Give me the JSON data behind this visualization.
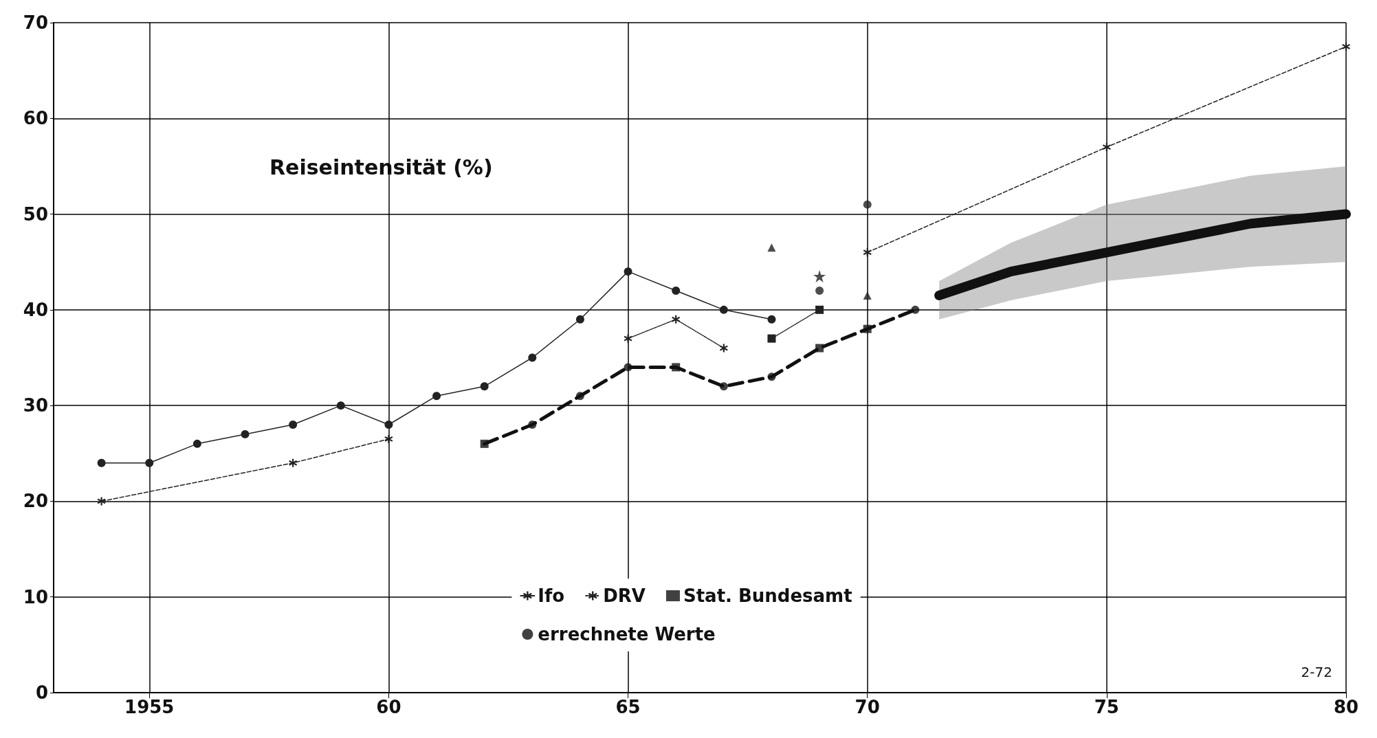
{
  "chart_data": {
    "type": "line",
    "ylabel": "Reiseintensität (%)",
    "annotations": [
      "2-72"
    ],
    "xlim": [
      1953,
      1980
    ],
    "xticks": [
      {
        "value": 1955,
        "label": "1955"
      },
      {
        "value": 1960,
        "label": "60"
      },
      {
        "value": 1965,
        "label": "65"
      },
      {
        "value": 1970,
        "label": "70"
      },
      {
        "value": 1975,
        "label": "75"
      },
      {
        "value": 1980,
        "label": "80"
      }
    ],
    "ylim": [
      0,
      70
    ],
    "yticks": [
      0,
      10,
      20,
      30,
      40,
      50,
      60,
      70
    ],
    "grid": true,
    "legend": "bottom",
    "series": [
      {
        "color": "#222222",
        "marker": "circle",
        "line_style": "solid",
        "x": [
          1954,
          1955,
          1956,
          1957,
          1958,
          1959,
          1960,
          1961,
          1962,
          1963,
          1964,
          1965,
          1966,
          1967,
          1968
        ],
        "values": [
          24,
          24,
          26,
          27,
          28,
          30,
          28,
          31,
          32,
          35,
          39,
          44,
          42,
          40,
          39
        ]
      },
      {
        "name": "Ifo",
        "type": "line",
        "color": "#222222",
        "marker": "cross",
        "line_style": "dashed",
        "x": [
          1954,
          1958,
          1960,
          1964,
          1970,
          1975,
          1980
        ],
        "values": [
          20,
          24,
          26.5,
          null,
          46,
          57,
          67.5
        ]
      },
      {
        "name": "DRV",
        "type": "line",
        "color": "#222222",
        "marker": "cross",
        "line_style": "dotted",
        "x": [
          1965,
          1966,
          1967
        ],
        "values": [
          37,
          39,
          36
        ]
      },
      {
        "type": "line",
        "color": "#222222",
        "marker": "square",
        "line_style": "dotted",
        "x": [
          1968,
          1969
        ],
        "values": [
          37,
          40
        ]
      },
      {
        "type": "scatter",
        "color": "#222222",
        "marker": "triangle",
        "x": [
          1968
        ],
        "values": [
          46.5
        ]
      },
      {
        "type": "scatter",
        "color": "#222222",
        "marker": "star",
        "x": [
          1969
        ],
        "values": [
          43.5
        ]
      },
      {
        "type": "scatter",
        "color": "#222222",
        "marker": "circle",
        "x": [
          1969,
          1970
        ],
        "values": [
          42,
          51
        ]
      },
      {
        "type": "scatter",
        "color": "#222222",
        "marker": "triangle",
        "x": [
          1970
        ],
        "values": [
          41.5
        ]
      },
      {
        "type": "line",
        "color": "#111111",
        "marker": "none",
        "line_style": "dashed",
        "x": [
          1962,
          1963,
          1964,
          1965,
          1966,
          1967,
          1968,
          1969,
          1970,
          1971
        ],
        "values": [
          26,
          28,
          31,
          34,
          34,
          32,
          33,
          36,
          38,
          40
        ]
      },
      {
        "name": "Stat. Bundesamt",
        "type": "scatter",
        "color": "#111111",
        "marker": "square",
        "x": [
          1962,
          1966,
          1969,
          1970
        ],
        "values": [
          26,
          34,
          36,
          38
        ]
      },
      {
        "name": "errechnete Werte",
        "type": "scatter",
        "color": "#111111",
        "marker": "circle",
        "x": [
          1963,
          1964,
          1965,
          1967,
          1968,
          1971
        ],
        "values": [
          28,
          31,
          34,
          32,
          33,
          40
        ]
      },
      {
        "color": "#111111",
        "marker": "none",
        "line_style": "solid",
        "x": [
          1971.5,
          1973,
          1975,
          1977,
          1978,
          1980
        ],
        "values": [
          41.5,
          44,
          46,
          48,
          49,
          50
        ],
        "lower": [
          39,
          41,
          43,
          44,
          44.5,
          45
        ],
        "upper": [
          43,
          47,
          51,
          53,
          54,
          55
        ]
      }
    ]
  }
}
